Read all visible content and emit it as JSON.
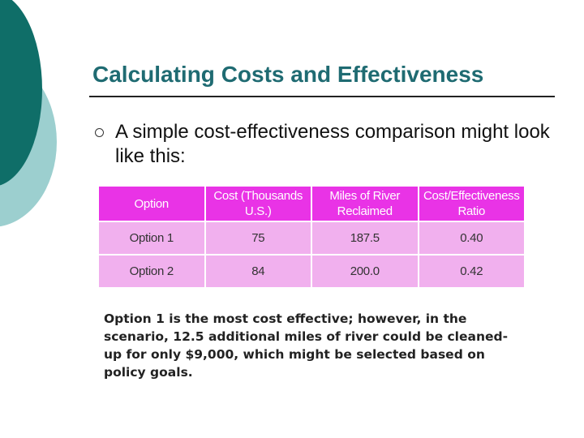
{
  "slide": {
    "title": "Calculating Costs and Effectiveness",
    "bullet": "A simple cost-effectiveness comparison might look like this:",
    "note": "Option 1 is the most cost effective; however, in the scenario, 12.5 additional miles of river could be cleaned-up for only $9,000, which might be selected based on policy goals."
  },
  "table": {
    "headers": [
      "Option",
      "Cost (Thousands U.S.)",
      "Miles of River Reclaimed",
      "Cost/Effectiveness Ratio"
    ],
    "rows": [
      [
        "Option 1",
        "75",
        "187.5",
        "0.40"
      ],
      [
        "Option 2",
        "84",
        "200.0",
        "0.42"
      ]
    ]
  },
  "colors": {
    "accent_dark": "#0f6e68",
    "accent_light": "#9ccfcf",
    "title": "#1f6b72",
    "table_header": "#e933e6",
    "table_body": "#f1b0ee"
  }
}
